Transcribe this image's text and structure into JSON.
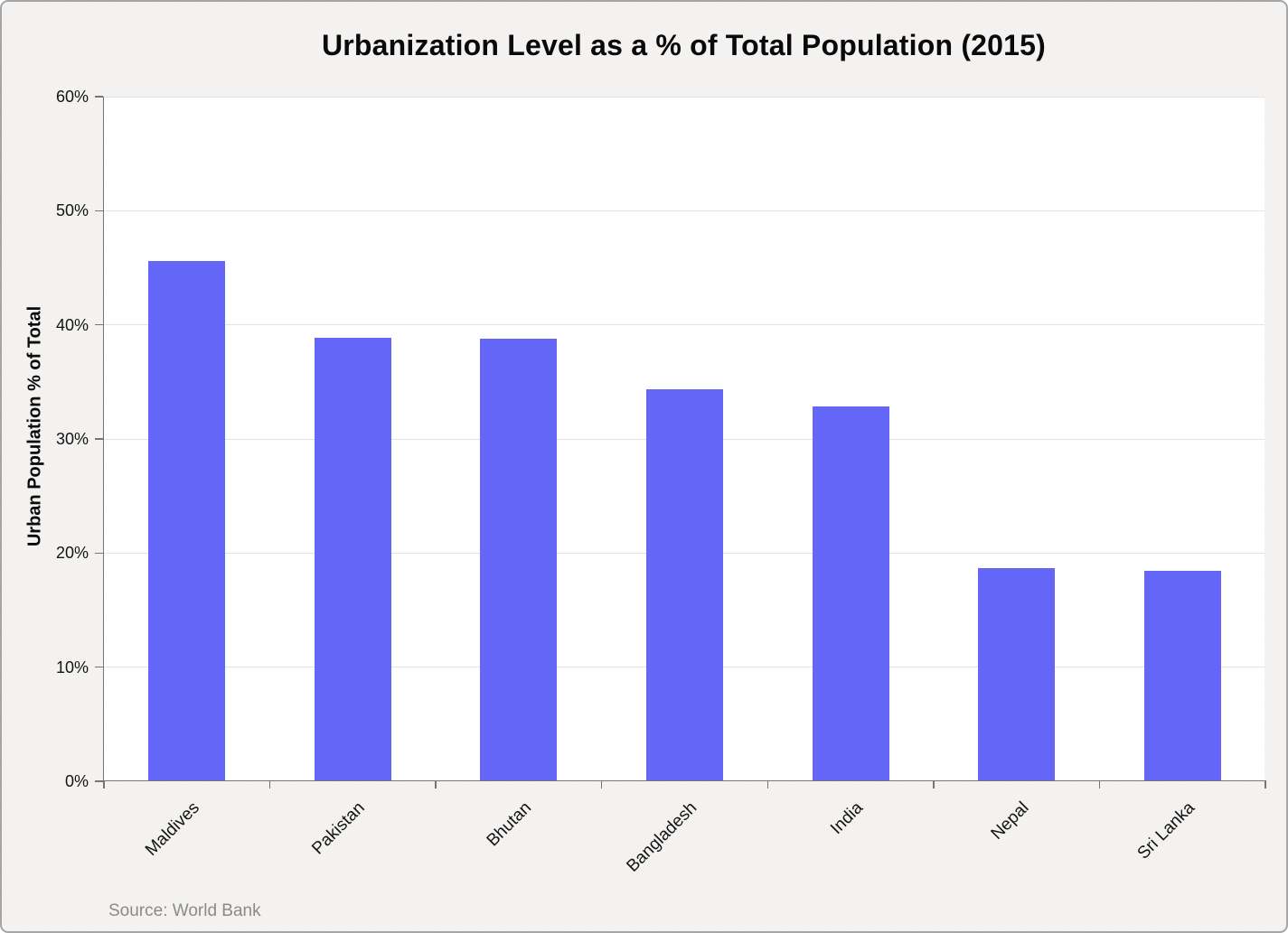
{
  "chart_data": {
    "type": "bar",
    "title": "Urbanization Level as a % of Total Population (2015)",
    "ylabel": "Urban Population % of Total",
    "xlabel": "",
    "source": "Source: World Bank",
    "categories": [
      "Maldives",
      "Pakistan",
      "Bhutan",
      "Bangladesh",
      "India",
      "Nepal",
      "Sri Lanka"
    ],
    "values": [
      45.5,
      38.8,
      38.7,
      34.3,
      32.8,
      18.6,
      18.4
    ],
    "ylim": [
      0,
      60
    ],
    "ytick_step": 10,
    "ytick_labels": [
      "0%",
      "10%",
      "20%",
      "30%",
      "40%",
      "50%",
      "60%"
    ],
    "grid": true,
    "legend": false,
    "bar_color": "#6466f8",
    "axis_color": "#757575",
    "gridline_color": "#e3e3e3",
    "plot_background": "#ffffff",
    "outer_background": "#f2f1ef",
    "source_color": "#8a8a8a"
  }
}
